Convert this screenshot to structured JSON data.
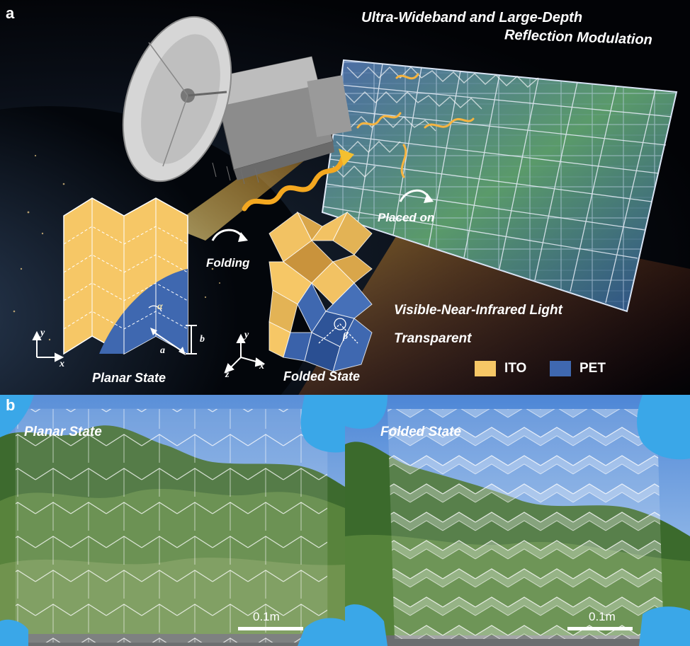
{
  "panel_a": {
    "letter": "a",
    "title_line1": "Ultra-Wideband and Large-Depth",
    "title_line2": "Reflection Modulation",
    "visible_line1": "Visible-Near-Infrared Light",
    "visible_line2": "Transparent",
    "folding_label": "Folding",
    "placed_on_label": "Placed on",
    "planar_state_label": "Planar State",
    "folded_state_label": "Folded State",
    "legend": [
      {
        "label": "ITO",
        "color": "#f6c766"
      },
      {
        "label": "PET",
        "color": "#3f68b0"
      }
    ],
    "planar_axes": {
      "y": "y",
      "x": "x"
    },
    "folded_axes": {
      "y": "y",
      "z": "z",
      "x": "x"
    },
    "dim_labels": {
      "alpha": "α",
      "a": "a",
      "b": "b",
      "beta": "β"
    }
  },
  "panel_b": {
    "letter": "b",
    "left_label": "Planar State",
    "right_label": "Folded State",
    "scale_left": "0.1m",
    "scale_right": "0.1m"
  },
  "colors": {
    "ito": "#f6c766",
    "pet": "#3f68b0",
    "sky": "#6f9fe0",
    "glove": "#3aa7e8",
    "solar": "#1f3d78"
  }
}
